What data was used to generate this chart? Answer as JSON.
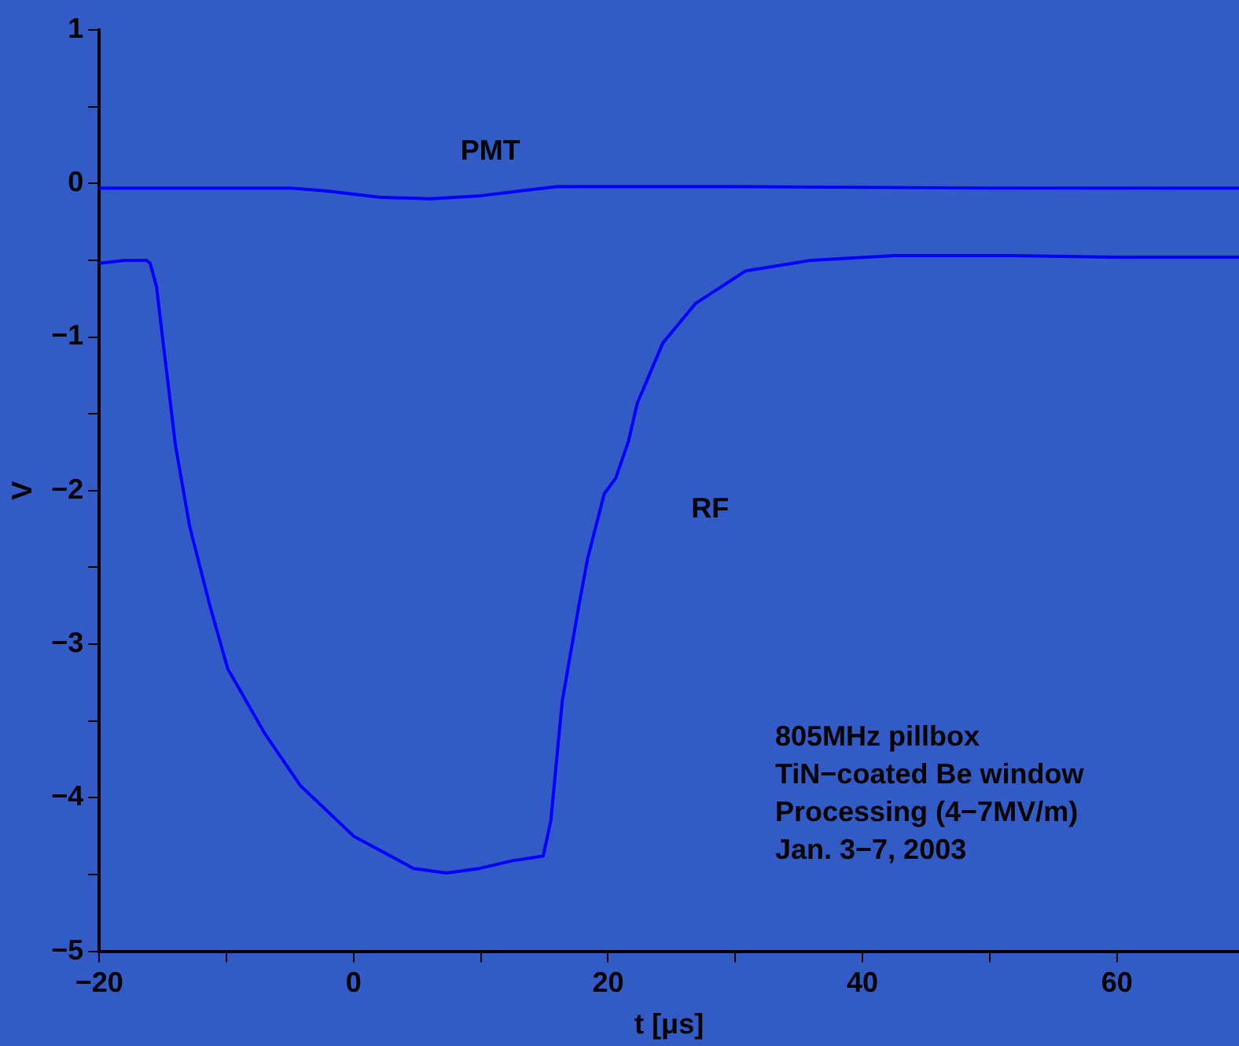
{
  "chart_data": {
    "type": "line",
    "xlabel": "t [μs]",
    "ylabel": "V",
    "xlim": [
      -20,
      69.6
    ],
    "ylim": [
      -5,
      1
    ],
    "xticks": [
      -20,
      {
        "value": -10,
        "label": null
      },
      0,
      {
        "value": 10,
        "label": null
      },
      20,
      {
        "value": 30,
        "label": null
      },
      40,
      {
        "value": 50,
        "label": null
      },
      60
    ],
    "yticks": [
      -5,
      {
        "value": -4.5,
        "label": null
      },
      -4,
      {
        "value": -3.5,
        "label": null
      },
      -3,
      {
        "value": -2.5,
        "label": null
      },
      -2,
      {
        "value": -1.5,
        "label": null
      },
      -1,
      {
        "value": -0.5,
        "label": null
      },
      0,
      {
        "value": 0.5,
        "label": null
      },
      1
    ],
    "grid": false,
    "legend": false,
    "marker": "none",
    "line_style": "solid",
    "series": [
      {
        "name": "RF",
        "color": "#0000ff",
        "x": [
          -20,
          -18,
          -16.3,
          -16,
          -15.5,
          -14.9,
          -14,
          -12.9,
          -11.3,
          -9.9,
          -7,
          -4.2,
          0,
          4.7,
          7.3,
          9.9,
          12.5,
          14.9,
          15.5,
          16.4,
          17.7,
          18.4,
          19.7,
          20.6,
          21.6,
          22.3,
          24.3,
          26.9,
          30.8,
          36,
          42.5,
          51.6,
          60,
          69.6
        ],
        "values": [
          -0.52,
          -0.5,
          -0.5,
          -0.52,
          -0.67,
          -1.09,
          -1.71,
          -2.23,
          -2.75,
          -3.16,
          -3.58,
          -3.92,
          -4.25,
          -4.46,
          -4.49,
          -4.46,
          -4.41,
          -4.38,
          -4.15,
          -3.37,
          -2.75,
          -2.44,
          -2.02,
          -1.92,
          -1.68,
          -1.43,
          -1.04,
          -0.78,
          -0.57,
          -0.5,
          -0.47,
          -0.47,
          -0.48,
          -0.48
        ]
      },
      {
        "name": "PMT",
        "color": "#0000ff",
        "x": [
          -20,
          -5,
          -2,
          2,
          6,
          10,
          14,
          16,
          30,
          50,
          69.6
        ],
        "values": [
          -0.03,
          -0.03,
          -0.05,
          -0.09,
          -0.1,
          -0.08,
          -0.04,
          -0.02,
          -0.02,
          -0.03,
          -0.03
        ]
      }
    ],
    "annotations": [
      "805MHz pillbox",
      "TiN−coated Be window",
      "Processing (4−7MV/m)",
      "Jan. 3−7, 2003"
    ]
  }
}
